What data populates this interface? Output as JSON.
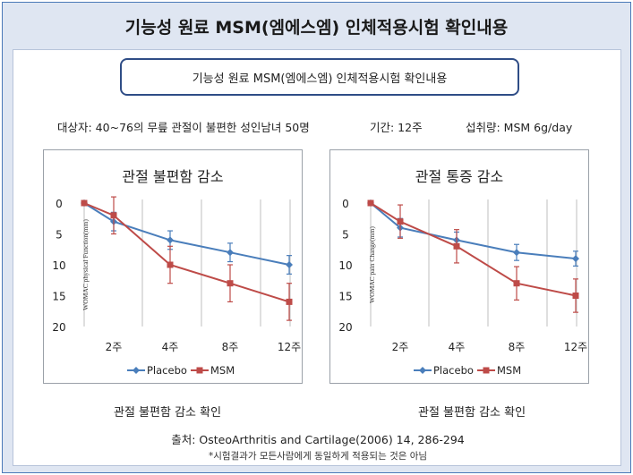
{
  "header": {
    "title": "기능성 원료 MSM(엠에스엠) 인체적용시험 확인내용"
  },
  "subtitle": "기능성 원료 MSM(엠에스엠) 인체적용시험 확인내용",
  "info": {
    "subjects": "대상자: 40~76의 무릎 관절이 불편한 성인남녀 50명",
    "period": "기간: 12주",
    "dose": "섭취량: MSM 6g/day"
  },
  "footer": {
    "source": "출처: OsteoArthritis and Cartilage(2006) 14, 286-294",
    "note": "*시험결과가 모든사람에게 동일하게 적용되는 것은 아님"
  },
  "colors": {
    "placebo": "#4a7ebb",
    "msm": "#be4b48",
    "frame": "#9aa0a8",
    "header_bg": "#dfe6f2",
    "box_border": "#2f4d86"
  },
  "chart_data": [
    {
      "type": "line",
      "title": "관절 불편함 감소",
      "ylabel": "WOMAC physical Function(mm)",
      "xlabel": "",
      "caption": "관절 불편함 감소 확인",
      "categories": [
        "",
        "2주",
        "4주",
        "8주",
        "12주"
      ],
      "ylim": [
        0,
        20
      ],
      "y_inverted": true,
      "yticks": [
        "0",
        "5",
        "10",
        "15",
        "20"
      ],
      "grid": "vertical",
      "legend": "bottom",
      "series": [
        {
          "name": "Placebo",
          "values": [
            0,
            3,
            6,
            8,
            10
          ],
          "error": [
            0,
            1.5,
            1.5,
            1.5,
            1.5
          ]
        },
        {
          "name": "MSM",
          "values": [
            0,
            2,
            10,
            13,
            16
          ],
          "error": [
            0,
            3,
            3,
            3,
            3
          ]
        }
      ]
    },
    {
      "type": "line",
      "title": "관절 통증 감소",
      "ylabel": "WOMAC pain Change(mm)",
      "xlabel": "",
      "caption": "관절 불편함 감소 확인",
      "categories": [
        "",
        "2주",
        "4주",
        "8주",
        "12주"
      ],
      "ylim": [
        0,
        20
      ],
      "y_inverted": true,
      "yticks": [
        "0",
        "5",
        "10",
        "15",
        "20"
      ],
      "grid": "vertical",
      "legend": "bottom",
      "series": [
        {
          "name": "Placebo",
          "values": [
            0,
            4,
            6,
            8,
            9
          ],
          "error": [
            0,
            1.5,
            1.3,
            1.3,
            1.2
          ]
        },
        {
          "name": "MSM",
          "values": [
            0,
            3,
            7,
            13,
            15
          ],
          "error": [
            0,
            2.7,
            2.7,
            2.7,
            2.7
          ]
        }
      ]
    }
  ]
}
